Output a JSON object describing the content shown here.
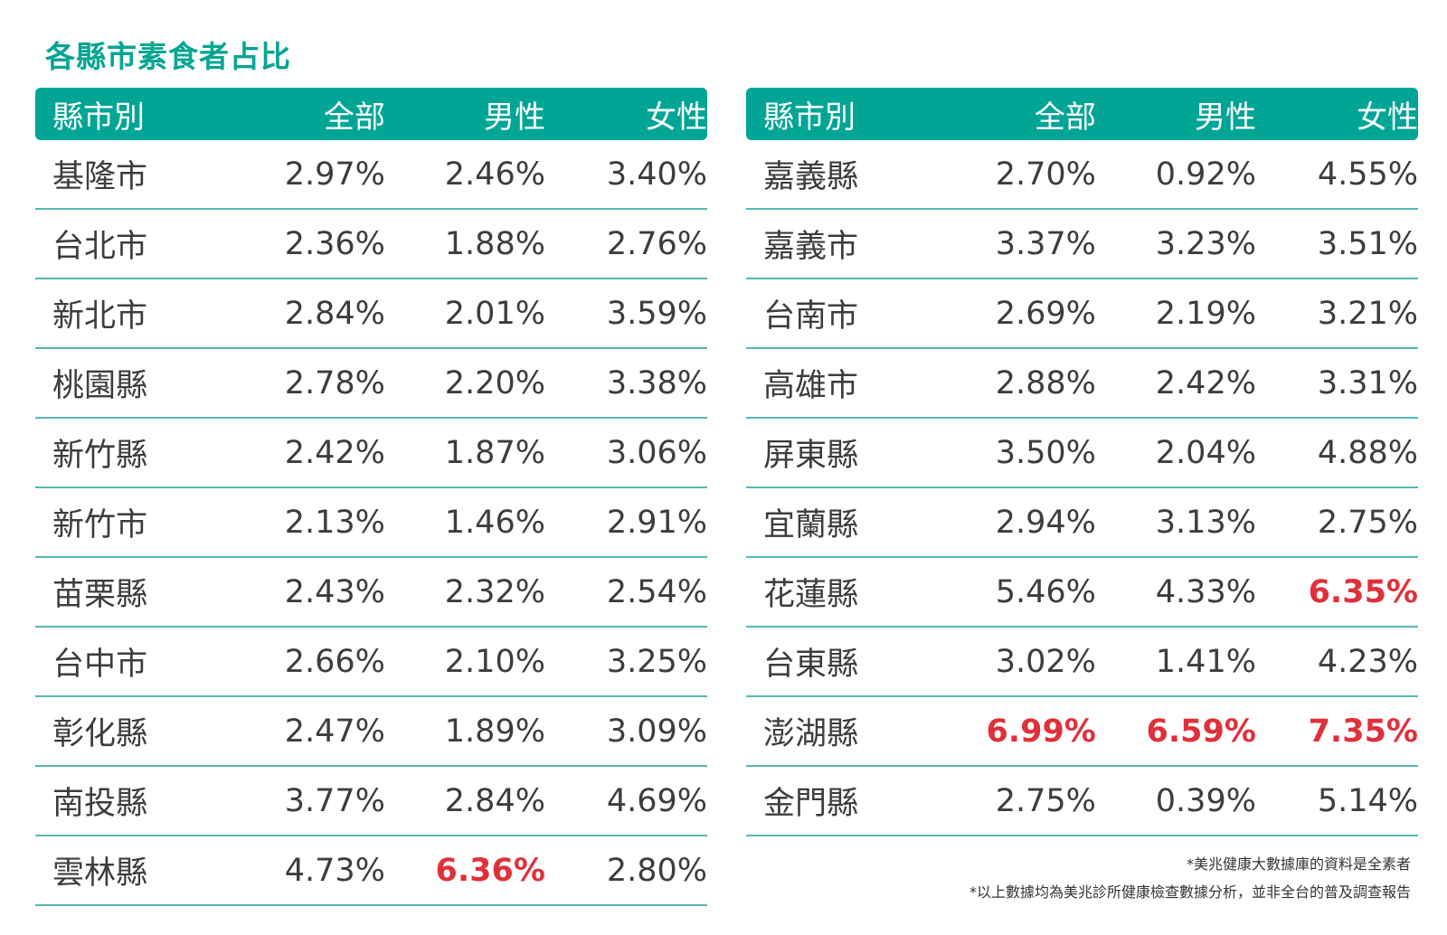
{
  "title": "各縣市素食者占比",
  "header": [
    "縣市別",
    "全部",
    "男性",
    "女性"
  ],
  "highlight_color": "#e0303a",
  "header_color": "#00a596",
  "notes": [
    "*美兆健康大數據庫的資料是全素者",
    "*以上數據均為美兆診所健康檢查數據分析，並非全台的普及調查報告"
  ],
  "chart_data": {
    "type": "table",
    "title": "各縣市素食者占比",
    "columns": [
      "縣市別",
      "全部",
      "男性",
      "女性"
    ],
    "tables": [
      {
        "rows": [
          {
            "name": "基隆市",
            "values": [
              "2.97%",
              "2.46%",
              "3.40%"
            ],
            "highlight": [
              false,
              false,
              false
            ]
          },
          {
            "name": "台北市",
            "values": [
              "2.36%",
              "1.88%",
              "2.76%"
            ],
            "highlight": [
              false,
              false,
              false
            ]
          },
          {
            "name": "新北市",
            "values": [
              "2.84%",
              "2.01%",
              "3.59%"
            ],
            "highlight": [
              false,
              false,
              false
            ]
          },
          {
            "name": "桃園縣",
            "values": [
              "2.78%",
              "2.20%",
              "3.38%"
            ],
            "highlight": [
              false,
              false,
              false
            ]
          },
          {
            "name": "新竹縣",
            "values": [
              "2.42%",
              "1.87%",
              "3.06%"
            ],
            "highlight": [
              false,
              false,
              false
            ]
          },
          {
            "name": "新竹市",
            "values": [
              "2.13%",
              "1.46%",
              "2.91%"
            ],
            "highlight": [
              false,
              false,
              false
            ]
          },
          {
            "name": "苗栗縣",
            "values": [
              "2.43%",
              "2.32%",
              "2.54%"
            ],
            "highlight": [
              false,
              false,
              false
            ]
          },
          {
            "name": "台中市",
            "values": [
              "2.66%",
              "2.10%",
              "3.25%"
            ],
            "highlight": [
              false,
              false,
              false
            ]
          },
          {
            "name": "彰化縣",
            "values": [
              "2.47%",
              "1.89%",
              "3.09%"
            ],
            "highlight": [
              false,
              false,
              false
            ]
          },
          {
            "name": "南投縣",
            "values": [
              "3.77%",
              "2.84%",
              "4.69%"
            ],
            "highlight": [
              false,
              false,
              false
            ]
          },
          {
            "name": "雲林縣",
            "values": [
              "4.73%",
              "6.36%",
              "2.80%"
            ],
            "highlight": [
              false,
              true,
              false
            ]
          }
        ]
      },
      {
        "rows": [
          {
            "name": "嘉義縣",
            "values": [
              "2.70%",
              "0.92%",
              "4.55%"
            ],
            "highlight": [
              false,
              false,
              false
            ]
          },
          {
            "name": "嘉義市",
            "values": [
              "3.37%",
              "3.23%",
              "3.51%"
            ],
            "highlight": [
              false,
              false,
              false
            ]
          },
          {
            "name": "台南市",
            "values": [
              "2.69%",
              "2.19%",
              "3.21%"
            ],
            "highlight": [
              false,
              false,
              false
            ]
          },
          {
            "name": "高雄市",
            "values": [
              "2.88%",
              "2.42%",
              "3.31%"
            ],
            "highlight": [
              false,
              false,
              false
            ]
          },
          {
            "name": "屏東縣",
            "values": [
              "3.50%",
              "2.04%",
              "4.88%"
            ],
            "highlight": [
              false,
              false,
              false
            ]
          },
          {
            "name": "宜蘭縣",
            "values": [
              "2.94%",
              "3.13%",
              "2.75%"
            ],
            "highlight": [
              false,
              false,
              false
            ]
          },
          {
            "name": "花蓮縣",
            "values": [
              "5.46%",
              "4.33%",
              "6.35%"
            ],
            "highlight": [
              false,
              false,
              true
            ]
          },
          {
            "name": "台東縣",
            "values": [
              "3.02%",
              "1.41%",
              "4.23%"
            ],
            "highlight": [
              false,
              false,
              false
            ]
          },
          {
            "name": "澎湖縣",
            "values": [
              "6.99%",
              "6.59%",
              "7.35%"
            ],
            "highlight": [
              true,
              true,
              true
            ]
          },
          {
            "name": "金門縣",
            "values": [
              "2.75%",
              "0.39%",
              "5.14%"
            ],
            "highlight": [
              false,
              false,
              false
            ]
          }
        ]
      }
    ]
  }
}
